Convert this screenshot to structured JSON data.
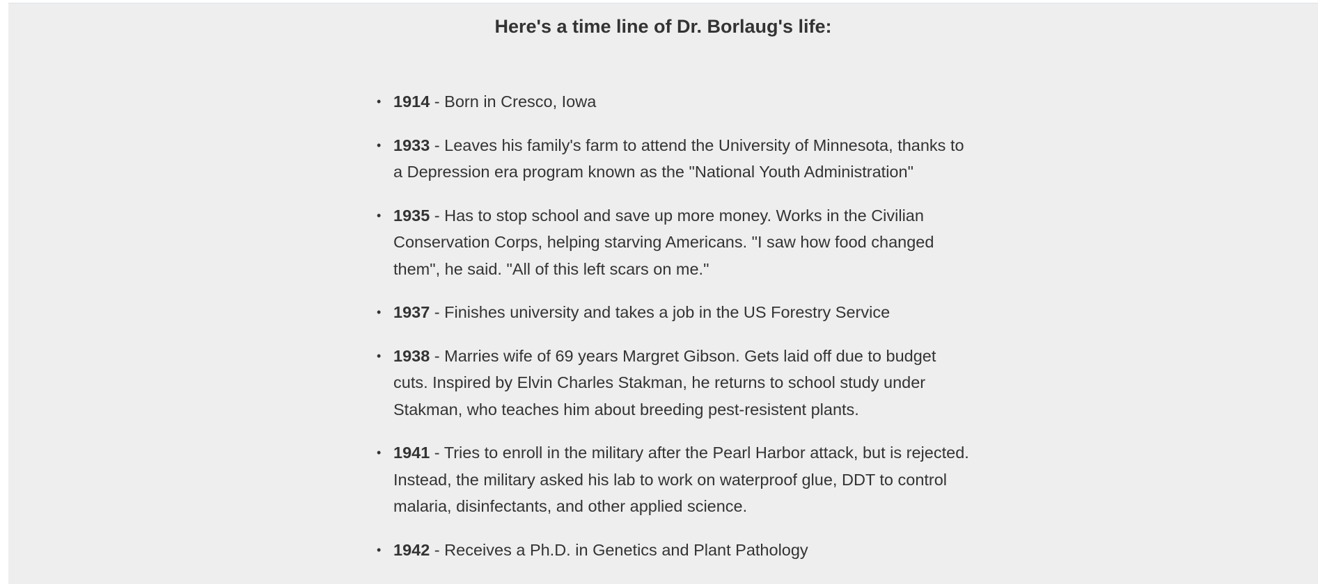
{
  "page": {
    "title": "Here's a time line of Dr. Borlaug's life:"
  },
  "timeline": [
    {
      "year": "1914",
      "text": " - Born in Cresco, Iowa"
    },
    {
      "year": "1933",
      "text": " - Leaves his family's farm to attend the University of Minnesota, thanks to a Depression era program known as the \"National Youth Administration\""
    },
    {
      "year": "1935",
      "text": " - Has to stop school and save up more money. Works in the Civilian Conservation Corps, helping starving Americans. \"I saw how food changed them\", he said. \"All of this left scars on me.\""
    },
    {
      "year": "1937",
      "text": " - Finishes university and takes a job in the US Forestry Service"
    },
    {
      "year": "1938",
      "text": " - Marries wife of 69 years Margret Gibson. Gets laid off due to budget cuts. Inspired by Elvin Charles Stakman, he returns to school study under Stakman, who teaches him about breeding pest-resistent plants."
    },
    {
      "year": "1941",
      "text": " - Tries to enroll in the military after the Pearl Harbor attack, but is rejected. Instead, the military asked his lab to work on waterproof glue, DDT to control malaria, disinfectants, and other applied science."
    },
    {
      "year": "1942",
      "text": " - Receives a Ph.D. in Genetics and Plant Pathology"
    }
  ]
}
